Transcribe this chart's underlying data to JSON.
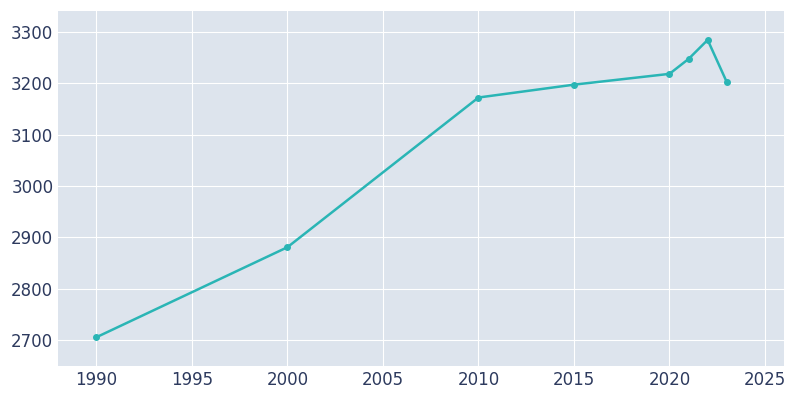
{
  "years": [
    1990,
    2000,
    2010,
    2015,
    2020,
    2021,
    2022,
    2023
  ],
  "population": [
    2706,
    2881,
    3172,
    3197,
    3218,
    3247,
    3284,
    3202
  ],
  "line_color": "#2ab5b5",
  "marker_color": "#2ab5b5",
  "fig_bg_color": "#ffffff",
  "ax_bg_color": "#dde4ed",
  "xlim": [
    1988,
    2026
  ],
  "ylim": [
    2650,
    3340
  ],
  "xticks": [
    1990,
    1995,
    2000,
    2005,
    2010,
    2015,
    2020,
    2025
  ],
  "yticks": [
    2700,
    2800,
    2900,
    3000,
    3100,
    3200,
    3300
  ],
  "tick_label_color": "#2d3a5e",
  "tick_fontsize": 12,
  "grid_color": "#ffffff",
  "grid_linewidth": 0.8
}
